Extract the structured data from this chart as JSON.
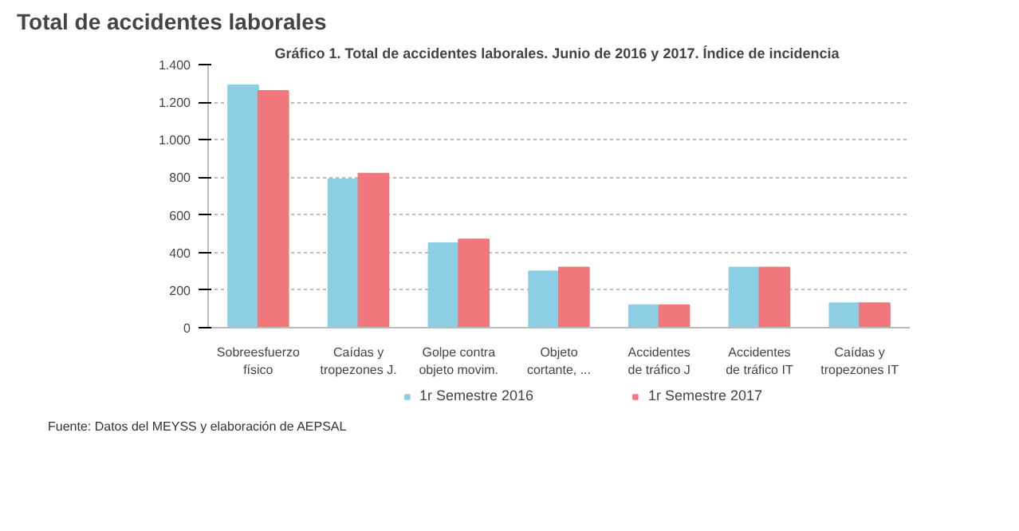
{
  "chart_data": {
    "type": "bar",
    "title": "Total de accidentes laborales",
    "subtitle": "Gráfico 1. Total de accidentes laborales. Junio de 2016 y 2017.  Índice de incidencia",
    "categories": [
      "Sobreesfuerzo físico",
      "Caídas y tropezones J.",
      "Golpe contra objeto movim.",
      "Objeto cortante, ...",
      "Accidentes de tráfico J",
      "Accidentes de tráfico IT",
      "Caídas y tropezones IT"
    ],
    "series": [
      {
        "name": "1r Semestre 2016",
        "color": "#8ccfe4",
        "values": [
          1290,
          790,
          450,
          300,
          120,
          320,
          130
        ]
      },
      {
        "name": "1r Semestre 2017",
        "color": "#f0787c",
        "values": [
          1260,
          820,
          470,
          320,
          120,
          320,
          130
        ]
      }
    ],
    "ylim": [
      0,
      1400
    ],
    "yticks": [
      {
        "value": 0,
        "label": "0"
      },
      {
        "value": 200,
        "label": "200"
      },
      {
        "value": 400,
        "label": "400"
      },
      {
        "value": 600,
        "label": "600"
      },
      {
        "value": 800,
        "label": "800"
      },
      {
        "value": 1000,
        "label": "1.000"
      },
      {
        "value": 1200,
        "label": "1.200"
      },
      {
        "value": 1400,
        "label": "1.400"
      }
    ],
    "grid": "y",
    "legend": "bottom",
    "annotations": [
      "Fuente: Datos del MEYSS y elaboración de AEPSAL"
    ]
  }
}
